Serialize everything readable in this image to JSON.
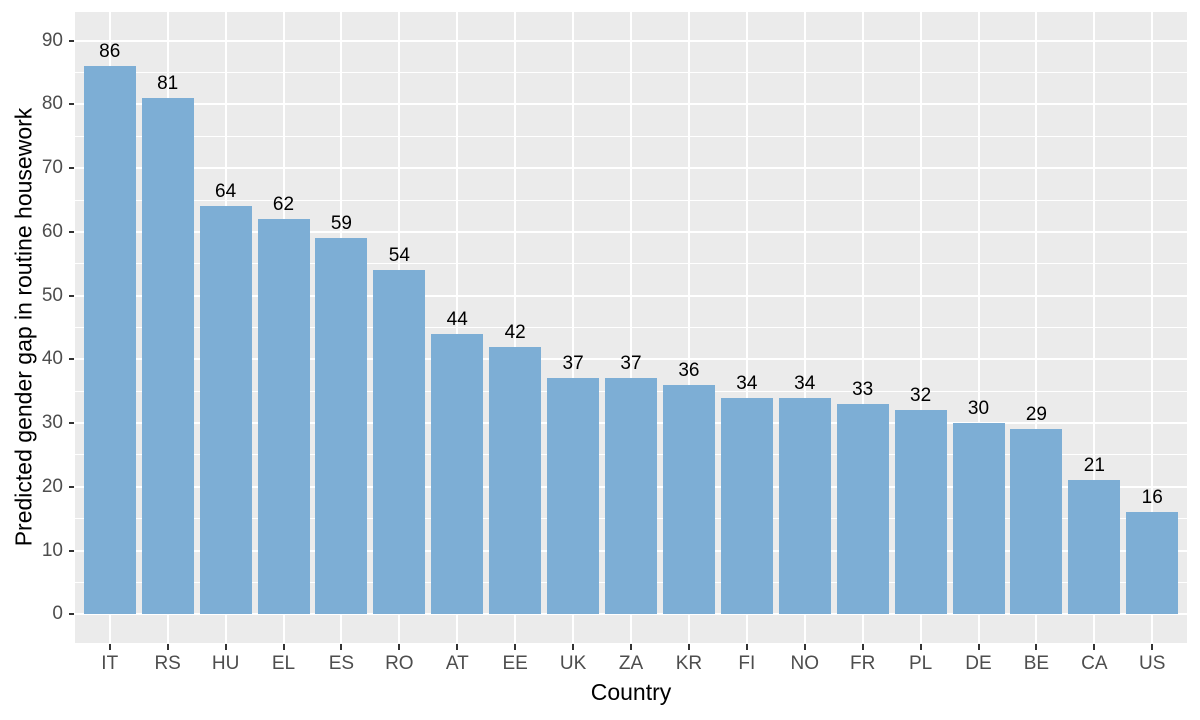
{
  "chart_data": {
    "type": "bar",
    "title": "",
    "xlabel": "Country",
    "ylabel": "Predicted gender gap in routine housework",
    "categories": [
      "IT",
      "RS",
      "HU",
      "EL",
      "ES",
      "RO",
      "AT",
      "EE",
      "UK",
      "ZA",
      "KR",
      "FI",
      "NO",
      "FR",
      "PL",
      "DE",
      "BE",
      "CA",
      "US"
    ],
    "values": [
      86,
      81,
      64,
      62,
      59,
      54,
      44,
      42,
      37,
      37,
      36,
      34,
      34,
      33,
      32,
      30,
      29,
      21,
      16
    ],
    "bar_labels": [
      "86",
      "81",
      "64",
      "62",
      "59",
      "54",
      "44",
      "42",
      "37",
      "37",
      "36",
      "34",
      "34",
      "33",
      "32",
      "30",
      "29",
      "21",
      "16"
    ],
    "show_bar_labels": true,
    "ylim": [
      0,
      90
    ],
    "y_ticks": [
      0,
      10,
      20,
      30,
      40,
      50,
      60,
      70,
      80,
      90
    ],
    "y_minor_ticks": [
      5,
      15,
      25,
      35,
      45,
      55,
      65,
      75,
      85
    ],
    "grid": "major-and-minor-horizontal, major-vertical-at-categories",
    "legend": "none",
    "colors": {
      "bar_fill": "#7DAED5",
      "panel_background": "#EBEBEB",
      "gridline": "#FFFFFF",
      "tick_text": "#4D4D4D",
      "axis_title_text": "#000000",
      "bar_label_text": "#000000",
      "tick_mark": "#333333",
      "figure_background": "#FFFFFF"
    }
  }
}
